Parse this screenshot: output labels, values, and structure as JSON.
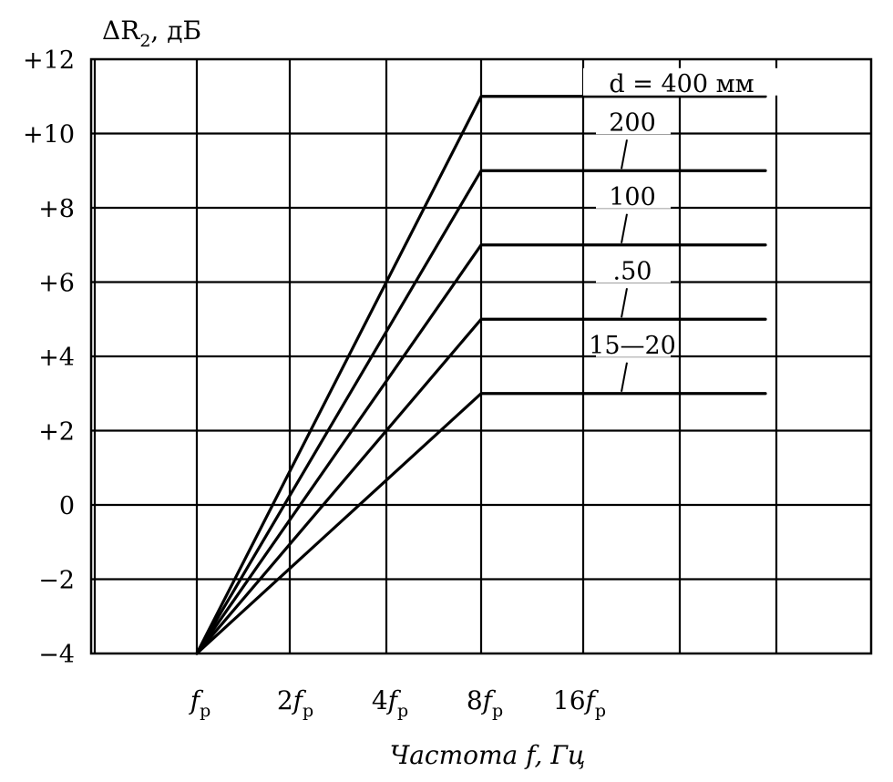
{
  "chart_data": {
    "type": "line",
    "ylabel": {
      "symbol": "ΔR",
      "subscript": "2",
      "unit": ", дБ"
    },
    "xlabel": {
      "text": "Частота",
      "var": "f",
      "unit": ", Гц"
    },
    "y_ticks": [
      "+12",
      "+10",
      "+8",
      "+6",
      "+4",
      "+2",
      "0",
      "−2",
      "−4"
    ],
    "ylim": [
      -4,
      12
    ],
    "x_ticks": [
      {
        "coef": "",
        "sym": "f",
        "sub": "р"
      },
      {
        "coef": "2",
        "sym": "f",
        "sub": "р"
      },
      {
        "coef": "4",
        "sym": "f",
        "sub": "р"
      },
      {
        "coef": "8",
        "sym": "f",
        "sub": "р"
      },
      {
        "coef": "16",
        "sym": "f",
        "sub": "р"
      }
    ],
    "x_scale": "log2 (octaves of f_р)",
    "grid": true,
    "series": [
      {
        "name": "d = 400 мм",
        "x": [
          1,
          8,
          64
        ],
        "y": [
          -4,
          11,
          11
        ]
      },
      {
        "name": "200",
        "x": [
          1,
          8,
          64
        ],
        "y": [
          -4,
          9,
          9
        ]
      },
      {
        "name": "100",
        "x": [
          1,
          8,
          64
        ],
        "y": [
          -4,
          7,
          7
        ]
      },
      {
        "name": ".50",
        "x": [
          1,
          8,
          64
        ],
        "y": [
          -4,
          5,
          5
        ]
      },
      {
        "name": "15—20",
        "x": [
          1,
          8,
          64
        ],
        "y": [
          -4,
          3,
          3
        ]
      }
    ]
  }
}
